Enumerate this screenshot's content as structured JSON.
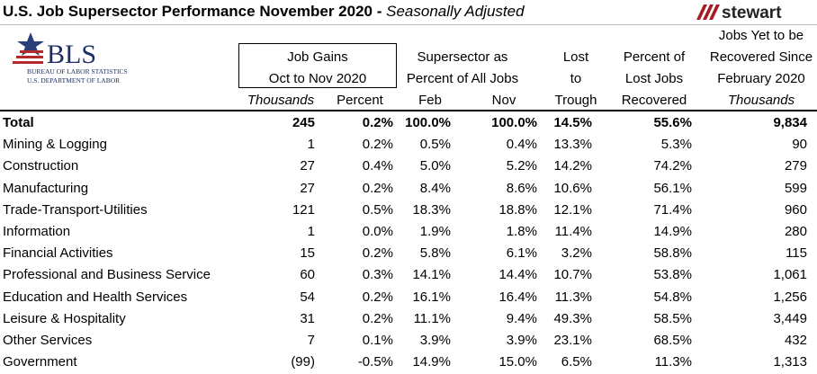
{
  "header": {
    "title": "U.S. Job Supersector Performance November 2020 -",
    "title_suffix": "Seasonally Adjusted",
    "logo_text": "stewart",
    "bls": {
      "name": "BLS",
      "line1": "BUREAU OF LABOR STATISTICS",
      "line2": "U.S. DEPARTMENT OF LABOR"
    }
  },
  "table": {
    "header_groups": [
      {
        "lines": [
          "Job Gains",
          "Oct to Nov 2020"
        ]
      },
      {
        "lines": [
          "Supersector as",
          "Percent of All Jobs"
        ]
      },
      {
        "lines": [
          "Lost",
          "to",
          "Trough"
        ]
      },
      {
        "lines": [
          "Percent of",
          "Lost Jobs",
          "Recovered"
        ]
      },
      {
        "lines": [
          "Jobs Yet to be",
          "Recovered Since",
          "February 2020"
        ]
      }
    ],
    "columns": [
      "Thousands",
      "Percent",
      "Feb",
      "Nov",
      "Thousands"
    ],
    "rows": [
      {
        "label": "Total",
        "values": [
          "245",
          "0.2%",
          "100.0%",
          "100.0%",
          "14.5%",
          "55.6%",
          "9,834"
        ]
      },
      {
        "label": "Mining & Logging",
        "values": [
          "1",
          "0.2%",
          "0.5%",
          "0.4%",
          "13.3%",
          "5.3%",
          "90"
        ]
      },
      {
        "label": "Construction",
        "values": [
          "27",
          "0.4%",
          "5.0%",
          "5.2%",
          "14.2%",
          "74.2%",
          "279"
        ]
      },
      {
        "label": "Manufacturing",
        "values": [
          "27",
          "0.2%",
          "8.4%",
          "8.6%",
          "10.6%",
          "56.1%",
          "599"
        ]
      },
      {
        "label": "Trade-Transport-Utilities",
        "values": [
          "121",
          "0.5%",
          "18.3%",
          "18.8%",
          "12.1%",
          "71.4%",
          "960"
        ]
      },
      {
        "label": "Information",
        "values": [
          "1",
          "0.0%",
          "1.9%",
          "1.8%",
          "11.4%",
          "14.9%",
          "280"
        ]
      },
      {
        "label": "Financial Activities",
        "values": [
          "15",
          "0.2%",
          "5.8%",
          "6.1%",
          "3.2%",
          "58.8%",
          "115"
        ]
      },
      {
        "label": "Professional and Business Service",
        "values": [
          "60",
          "0.3%",
          "14.1%",
          "14.4%",
          "10.7%",
          "53.8%",
          "1,061"
        ]
      },
      {
        "label": "Education and Health Services",
        "values": [
          "54",
          "0.2%",
          "16.1%",
          "16.4%",
          "11.3%",
          "54.8%",
          "1,256"
        ]
      },
      {
        "label": "Leisure & Hospitality",
        "values": [
          "31",
          "0.2%",
          "11.1%",
          "9.4%",
          "49.3%",
          "58.5%",
          "3,449"
        ]
      },
      {
        "label": "Other Services",
        "values": [
          "7",
          "0.1%",
          "3.9%",
          "3.9%",
          "23.1%",
          "68.5%",
          "432"
        ]
      },
      {
        "label": "Government",
        "values": [
          "(99)",
          "-0.5%",
          "14.9%",
          "15.0%",
          "6.5%",
          "11.3%",
          "1,313"
        ]
      }
    ]
  }
}
